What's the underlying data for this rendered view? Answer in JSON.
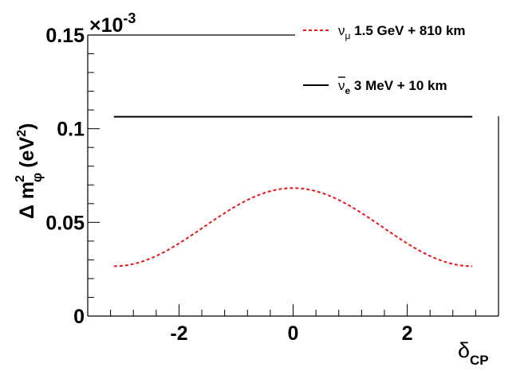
{
  "chart_data": {
    "type": "line",
    "title": "",
    "xlabel": "δ",
    "xlabel_sub": "CP",
    "ylabel_prefix": "Δ m",
    "ylabel_sub": "φ",
    "ylabel_sup": "2",
    "ylabel_unit": "(eV",
    "ylabel_unit_sup": "2",
    "ylabel_close": ")",
    "y_exponent_base": "×10",
    "y_exponent_power": "-3",
    "xlim": [
      -3.6,
      3.6
    ],
    "ylim": [
      0,
      0.15
    ],
    "x_ticks": [
      -2,
      0,
      2
    ],
    "x_tick_labels": [
      "-2",
      "0",
      "2"
    ],
    "y_ticks": [
      0,
      0.05,
      0.1,
      0.15
    ],
    "y_tick_labels": [
      "0",
      "0.05",
      "0.1",
      "0.15"
    ],
    "grid": false,
    "legend_position": "top-right",
    "series": [
      {
        "name_main": "ν",
        "name_sub": "μ",
        "name_rest": " 1.5 GeV + 810 km",
        "style": "dashed",
        "color": "#e8161b",
        "x": [
          -3.1416,
          -2.5,
          -2.0,
          -1.5,
          -1.0,
          -0.5,
          0.0,
          0.5,
          1.0,
          1.5,
          2.0,
          2.5,
          3.1416
        ],
        "y": [
          0.0266,
          0.0306,
          0.0362,
          0.0445,
          0.0531,
          0.0623,
          0.0683,
          0.0623,
          0.0531,
          0.0445,
          0.0362,
          0.0306,
          0.0266
        ]
      },
      {
        "name_main": "ν",
        "name_sub": "e",
        "name_rest": " 3 MeV + 10 km",
        "style": "solid",
        "color": "#000000",
        "x": [
          -3.1416,
          3.1416
        ],
        "y": [
          0.1064,
          0.1064
        ]
      }
    ]
  }
}
